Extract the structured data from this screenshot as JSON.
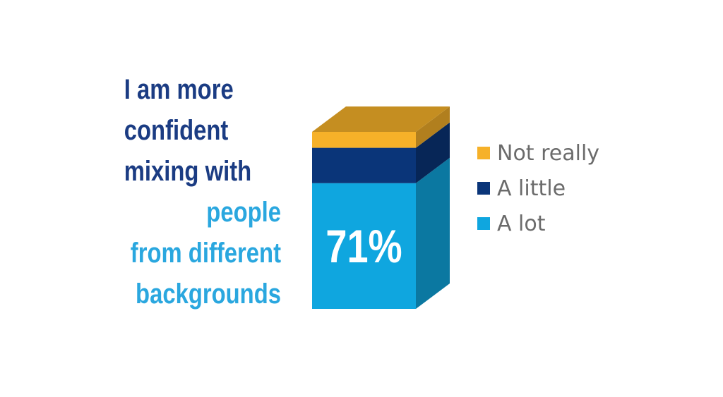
{
  "statement": {
    "dark_lines": [
      "I am more",
      "confident",
      "mixing with"
    ],
    "light_lines": [
      "people",
      "from different",
      "backgrounds"
    ]
  },
  "colors": {
    "statement_dark": "#1b3c83",
    "statement_light": "#2aa7df",
    "a_lot": "#0fa6df",
    "a_little": "#0a3579",
    "not_really": "#f6b129",
    "legend_text": "#6b6b6b"
  },
  "chart_data": {
    "type": "bar",
    "style": "3d-stacked-single-column",
    "title": "",
    "categories": [
      ""
    ],
    "series": [
      {
        "name": "A lot",
        "values": [
          71
        ]
      },
      {
        "name": "A little",
        "values": [
          20
        ]
      },
      {
        "name": "Not really",
        "values": [
          9
        ]
      }
    ],
    "value_label": "71%",
    "legend": {
      "placement": "right",
      "entries": [
        "Not really",
        "A little",
        "A lot"
      ]
    },
    "ylim": [
      0,
      100
    ],
    "grid": false,
    "axes_visible": false
  }
}
